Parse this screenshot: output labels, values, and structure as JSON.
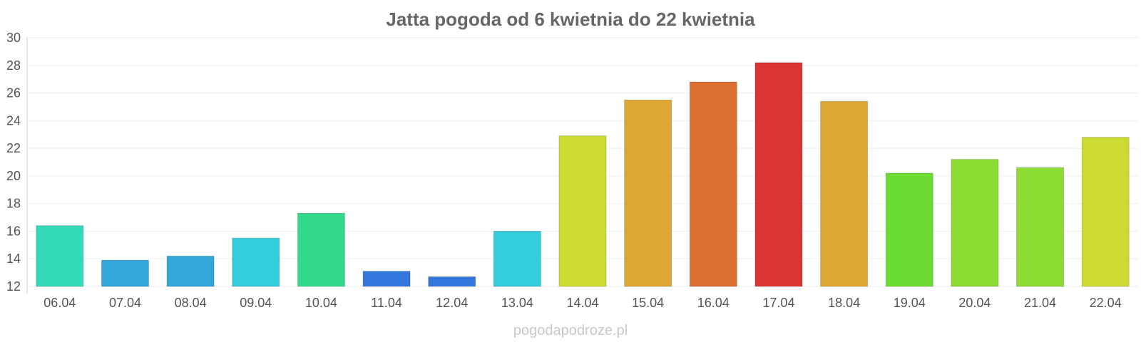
{
  "chart_data": {
    "type": "bar",
    "title": "Jatta pogoda od 6 kwietnia do 22 kwietnia",
    "xlabel": "",
    "ylabel": "",
    "ylim": [
      12,
      30
    ],
    "yticks": [
      12,
      14,
      16,
      18,
      20,
      22,
      24,
      26,
      28,
      30
    ],
    "grid": true,
    "legend": "none",
    "categories": [
      "06.04",
      "07.04",
      "08.04",
      "09.04",
      "10.04",
      "11.04",
      "12.04",
      "13.04",
      "14.04",
      "15.04",
      "16.04",
      "17.04",
      "18.04",
      "19.04",
      "20.04",
      "21.04",
      "22.04"
    ],
    "values": [
      16.4,
      13.9,
      14.2,
      15.5,
      17.3,
      13.1,
      12.7,
      16.0,
      22.9,
      25.5,
      26.8,
      28.2,
      25.4,
      20.2,
      21.2,
      20.6,
      22.8
    ],
    "colors": [
      "#33d9b8",
      "#33a6dc",
      "#33a6dc",
      "#33cddc",
      "#33d98a",
      "#3377dc",
      "#3377dc",
      "#33cddc",
      "#ccdc33",
      "#dca833",
      "#dc7033",
      "#dc3333",
      "#dca833",
      "#6cdc33",
      "#8cdc33",
      "#8cdc33",
      "#ccdc33"
    ]
  },
  "watermark": "pogodapodroze.pl"
}
